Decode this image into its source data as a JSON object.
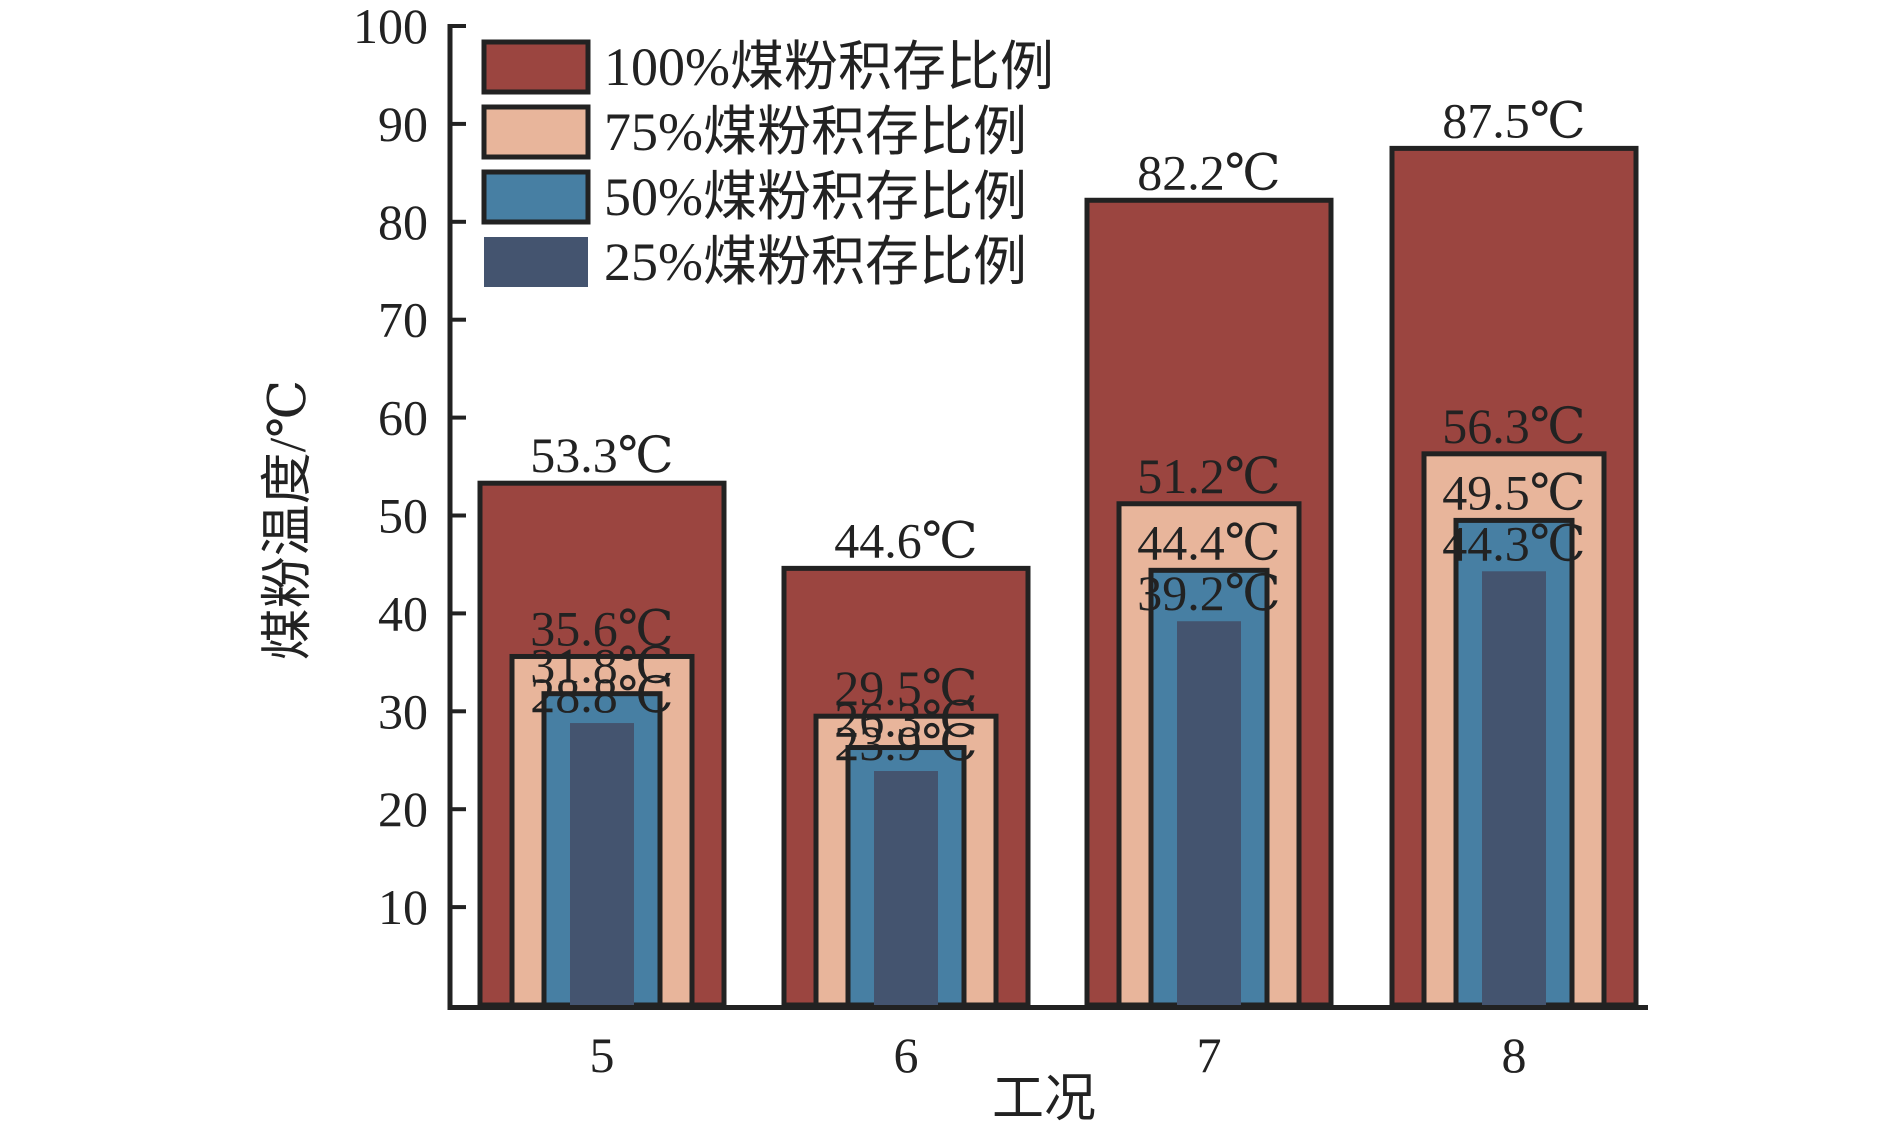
{
  "chart_data": {
    "type": "bar",
    "title": "",
    "xlabel": "工况",
    "ylabel": "煤粉温度/℃",
    "categories": [
      "5",
      "6",
      "7",
      "8"
    ],
    "ylim": [
      0,
      100
    ],
    "yticks": [
      10,
      20,
      30,
      40,
      50,
      60,
      70,
      80,
      90,
      100
    ],
    "legend_position": "top-left",
    "grid": false,
    "unit_suffix": "℃",
    "series": [
      {
        "name": "100%煤粉积存比例",
        "color": "#9b4540",
        "values": [
          53.3,
          44.6,
          82.2,
          87.5
        ]
      },
      {
        "name": "75%煤粉积存比例",
        "color": "#e8b59b",
        "values": [
          35.6,
          29.5,
          51.2,
          56.3
        ]
      },
      {
        "name": "50%煤粉积存比例",
        "color": "#477fa3",
        "values": [
          31.8,
          26.3,
          44.4,
          49.5
        ]
      },
      {
        "name": "25%煤粉积存比例",
        "color": "#44546f",
        "values": [
          28.8,
          23.9,
          39.2,
          44.3
        ]
      }
    ]
  }
}
